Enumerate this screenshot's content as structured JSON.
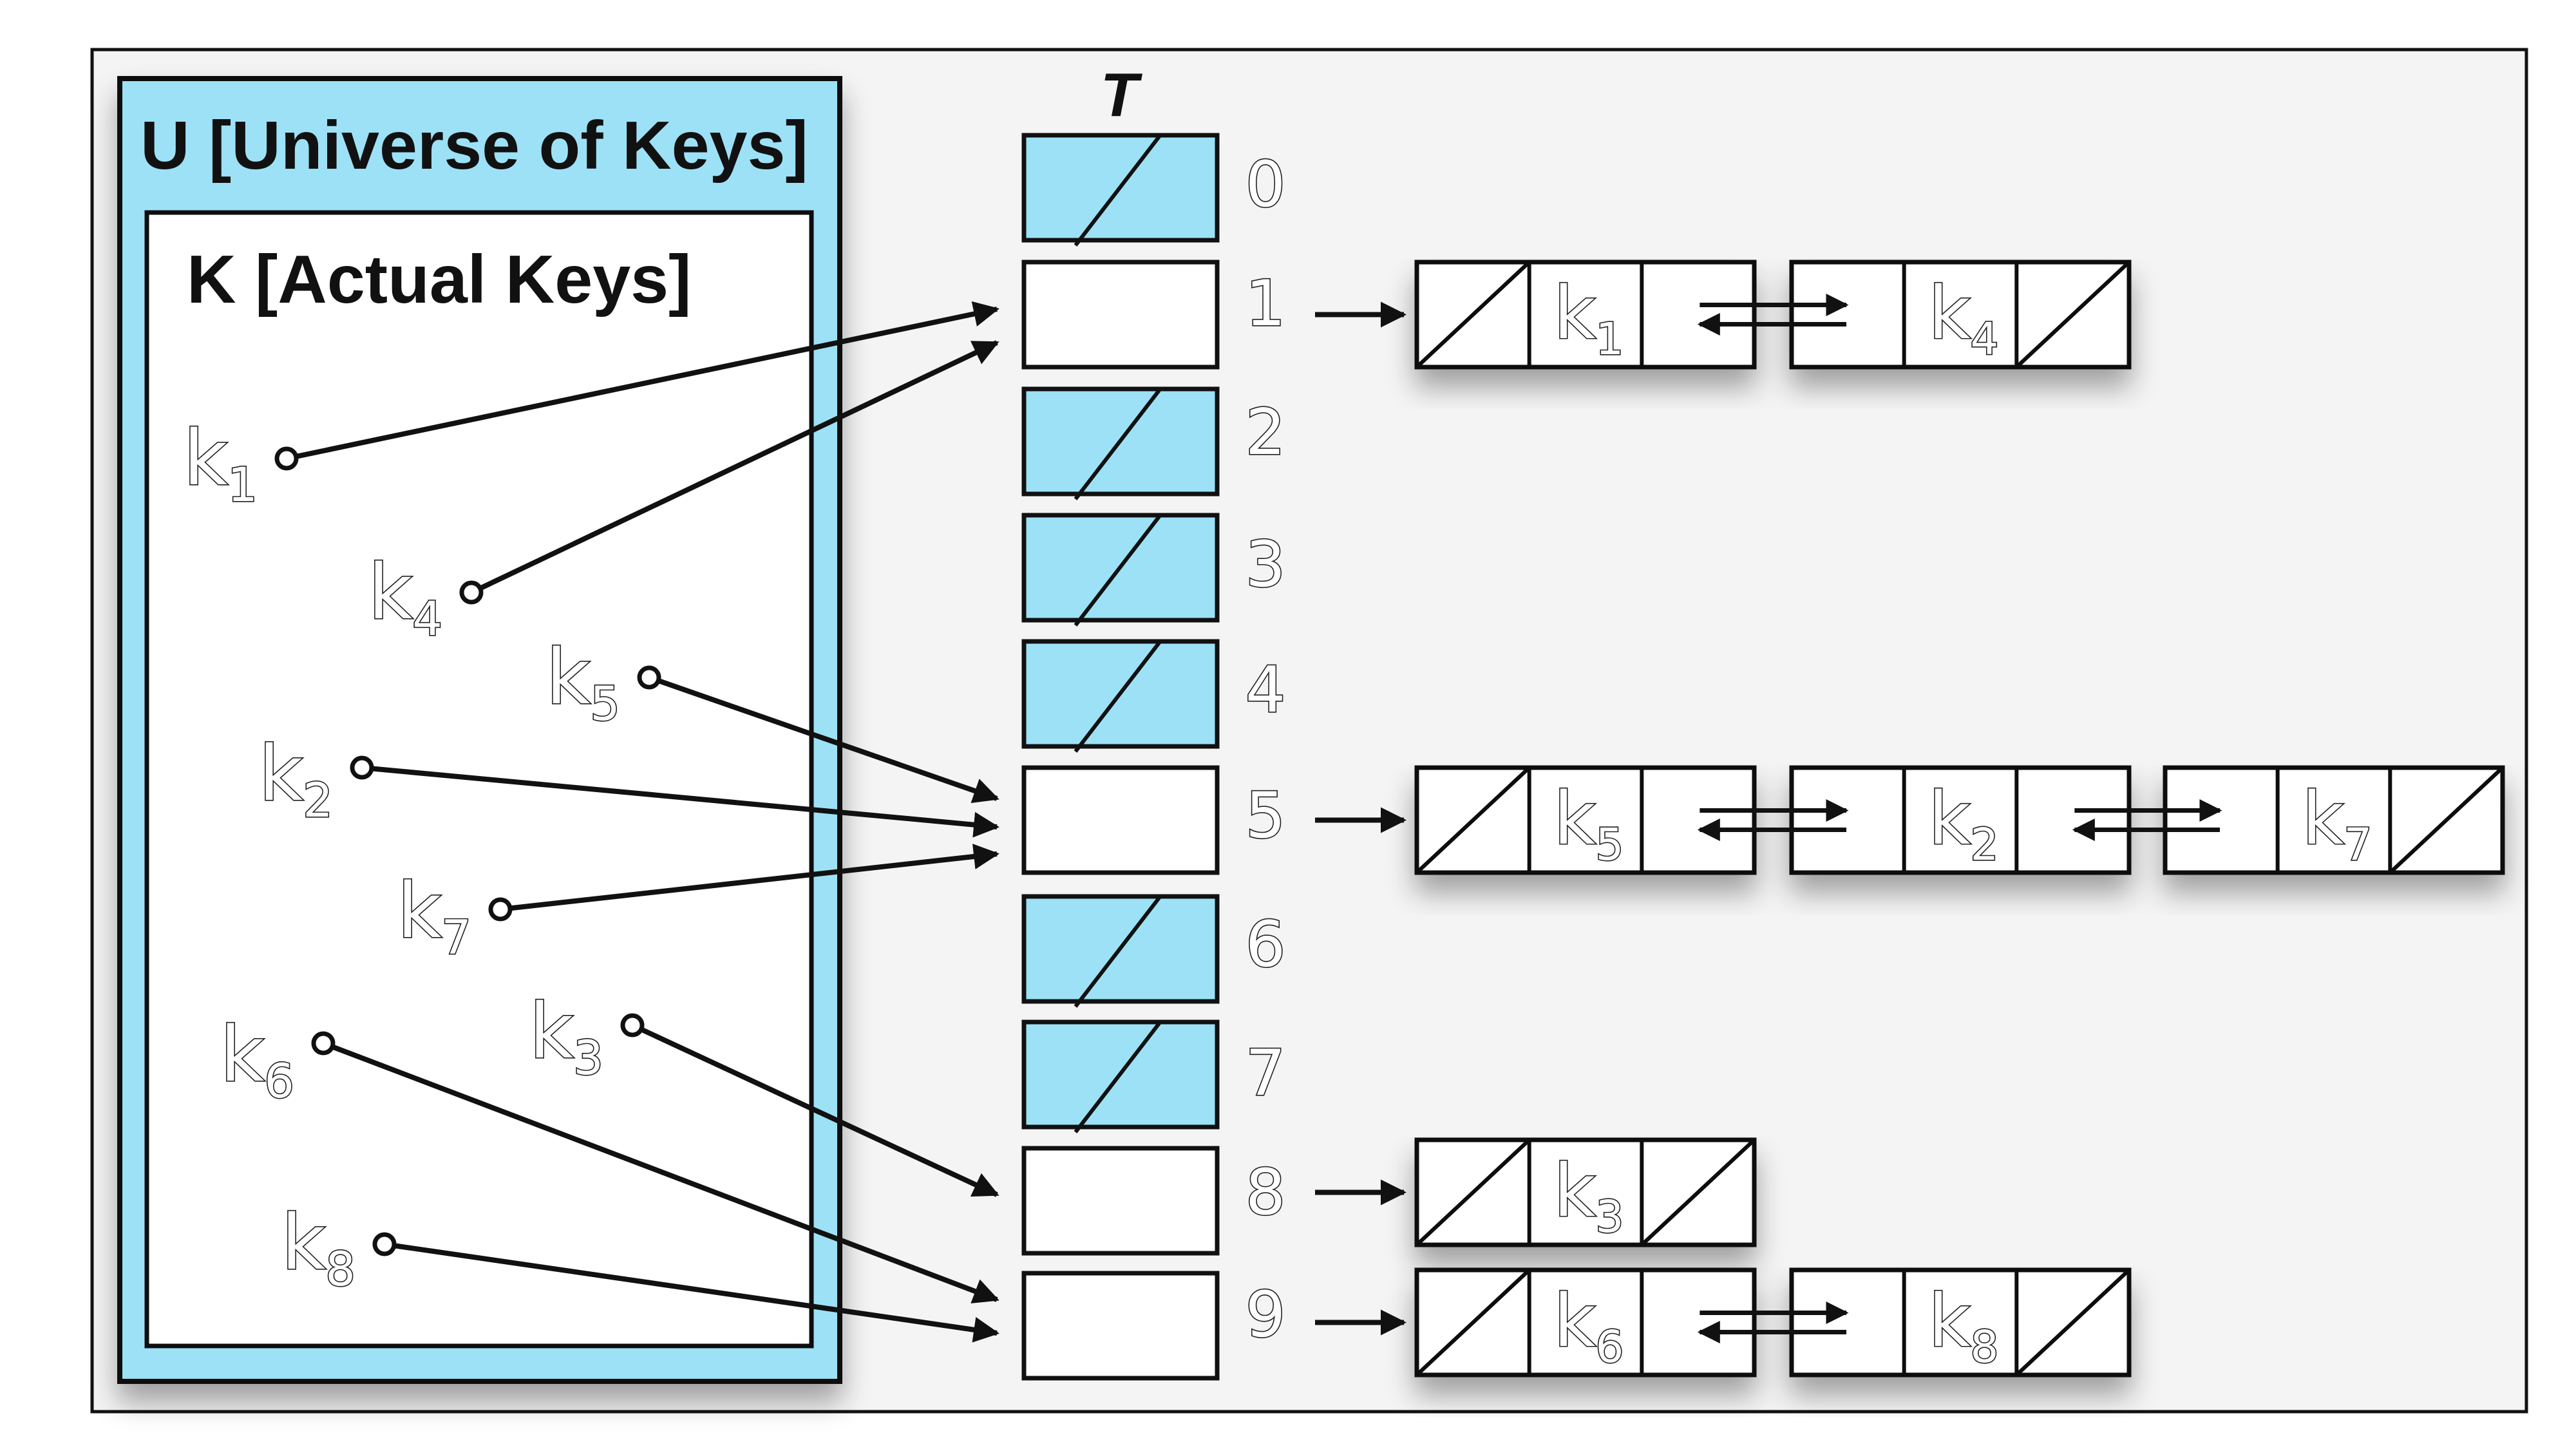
{
  "universe_label": "U [Universe of Keys]",
  "actual_keys_label": "K [Actual Keys]",
  "table_label": "T",
  "slots": [
    {
      "index": "0",
      "empty": true
    },
    {
      "index": "1",
      "empty": false
    },
    {
      "index": "2",
      "empty": true
    },
    {
      "index": "3",
      "empty": true
    },
    {
      "index": "4",
      "empty": true
    },
    {
      "index": "5",
      "empty": false
    },
    {
      "index": "6",
      "empty": true
    },
    {
      "index": "7",
      "empty": true
    },
    {
      "index": "8",
      "empty": false
    },
    {
      "index": "9",
      "empty": false
    }
  ],
  "keys": [
    {
      "id": "k1",
      "letter": "k",
      "sub": "1",
      "slot": 1
    },
    {
      "id": "k4",
      "letter": "k",
      "sub": "4",
      "slot": 1
    },
    {
      "id": "k5",
      "letter": "k",
      "sub": "5",
      "slot": 5
    },
    {
      "id": "k2",
      "letter": "k",
      "sub": "2",
      "slot": 5
    },
    {
      "id": "k7",
      "letter": "k",
      "sub": "7",
      "slot": 5
    },
    {
      "id": "k6",
      "letter": "k",
      "sub": "6",
      "slot": 9
    },
    {
      "id": "k3",
      "letter": "k",
      "sub": "3",
      "slot": 8
    },
    {
      "id": "k8",
      "letter": "k",
      "sub": "8",
      "slot": 9
    }
  ],
  "chains": [
    {
      "slot": 1,
      "nodes": [
        {
          "letter": "k",
          "sub": "1"
        },
        {
          "letter": "k",
          "sub": "4"
        }
      ]
    },
    {
      "slot": 5,
      "nodes": [
        {
          "letter": "k",
          "sub": "5"
        },
        {
          "letter": "k",
          "sub": "2"
        },
        {
          "letter": "k",
          "sub": "7"
        }
      ]
    },
    {
      "slot": 8,
      "nodes": [
        {
          "letter": "k",
          "sub": "3"
        }
      ]
    },
    {
      "slot": 9,
      "nodes": [
        {
          "letter": "k",
          "sub": "6"
        },
        {
          "letter": "k",
          "sub": "8"
        }
      ]
    }
  ],
  "colors": {
    "fill_blue": "#9de1f7",
    "stroke": "#111111",
    "frame_bg": "#f4f4f4",
    "white": "#ffffff"
  }
}
